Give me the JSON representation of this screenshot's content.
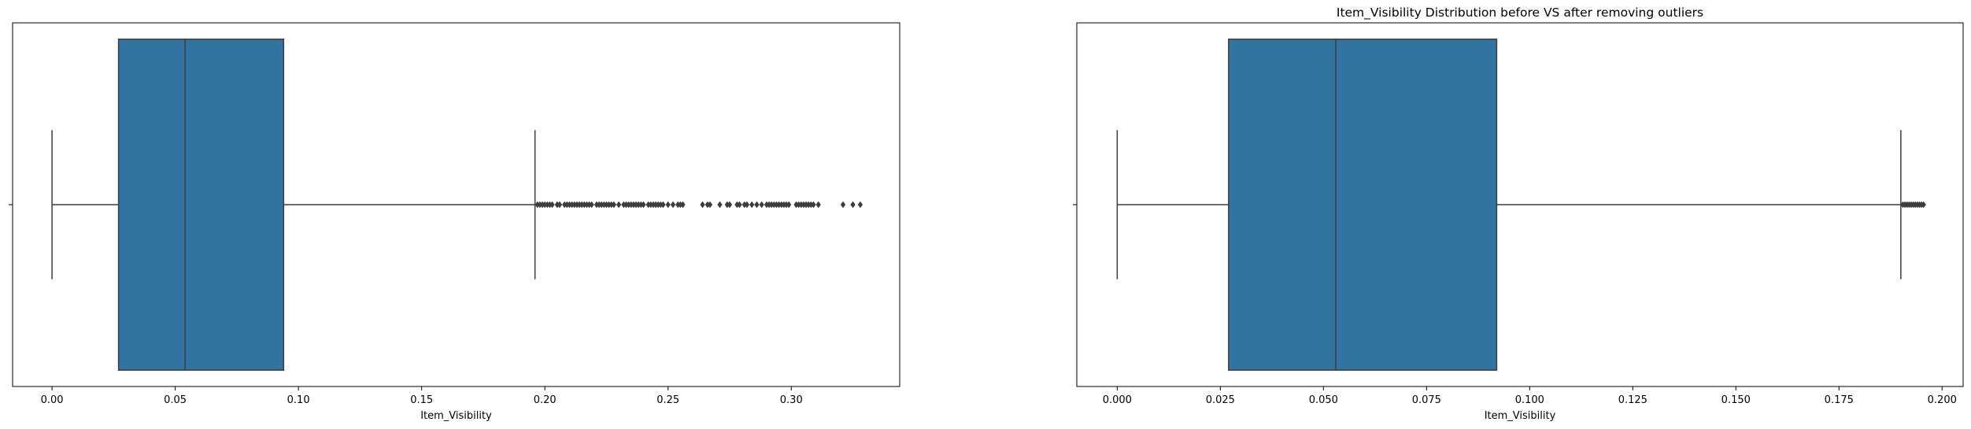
{
  "figure": {
    "title": "Item_Visibility Distribution before VS after removing outliers"
  },
  "chart_data": [
    {
      "type": "box",
      "xlabel": "Item_Visibility",
      "xlim": [
        -0.016,
        0.344
      ],
      "xticks": [
        "0.00",
        "0.05",
        "0.10",
        "0.15",
        "0.20",
        "0.25",
        "0.30"
      ],
      "box_color": "#3274a1",
      "stats": {
        "whislo": 0.0,
        "q1": 0.027,
        "med": 0.054,
        "q3": 0.094,
        "whishi": 0.196
      },
      "outliers": [
        0.197,
        0.198,
        0.199,
        0.2,
        0.201,
        0.202,
        0.203,
        0.205,
        0.206,
        0.208,
        0.209,
        0.21,
        0.211,
        0.212,
        0.213,
        0.214,
        0.215,
        0.216,
        0.217,
        0.218,
        0.219,
        0.221,
        0.222,
        0.223,
        0.224,
        0.225,
        0.226,
        0.227,
        0.228,
        0.23,
        0.232,
        0.233,
        0.234,
        0.235,
        0.236,
        0.237,
        0.238,
        0.239,
        0.24,
        0.242,
        0.243,
        0.244,
        0.245,
        0.246,
        0.247,
        0.248,
        0.25,
        0.252,
        0.254,
        0.255,
        0.256,
        0.264,
        0.266,
        0.267,
        0.271,
        0.274,
        0.275,
        0.278,
        0.279,
        0.281,
        0.282,
        0.284,
        0.286,
        0.288,
        0.29,
        0.291,
        0.292,
        0.293,
        0.294,
        0.295,
        0.296,
        0.297,
        0.298,
        0.299,
        0.302,
        0.303,
        0.304,
        0.305,
        0.306,
        0.307,
        0.308,
        0.309,
        0.311,
        0.321,
        0.325,
        0.328
      ]
    },
    {
      "type": "box",
      "xlabel": "Item_Visibility",
      "xlim": [
        -0.0098,
        0.2051
      ],
      "xticks": [
        "0.000",
        "0.025",
        "0.050",
        "0.075",
        "0.100",
        "0.125",
        "0.150",
        "0.175",
        "0.200"
      ],
      "box_color": "#3274a1",
      "stats": {
        "whislo": 0.0,
        "q1": 0.027,
        "med": 0.053,
        "q3": 0.092,
        "whishi": 0.19
      },
      "outliers": [
        0.1905,
        0.191,
        0.1915,
        0.192,
        0.1925,
        0.193,
        0.1935,
        0.194,
        0.1945,
        0.195,
        0.1955
      ]
    }
  ]
}
